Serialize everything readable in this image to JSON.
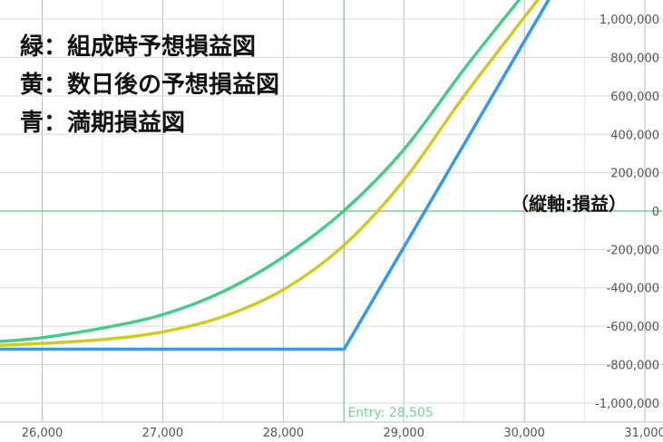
{
  "chart_data": {
    "type": "line",
    "xlim": [
      25650,
      31150
    ],
    "ylim": [
      -1100000,
      1100000
    ],
    "x_ticks": [
      26000,
      27000,
      28000,
      29000,
      30000,
      31000
    ],
    "x_tick_labels": [
      "26,000",
      "27,000",
      "28,000",
      "29,000",
      "30,000",
      "31,000"
    ],
    "y_ticks": [
      1000000,
      800000,
      600000,
      400000,
      200000,
      0,
      -200000,
      -400000,
      -600000,
      -800000,
      -1000000
    ],
    "y_tick_labels": [
      "1,000,000",
      "800,000",
      "600,000",
      "400,000",
      "200,000",
      "0",
      "-200,000",
      "-400,000",
      "-600,000",
      "-800,000",
      "-1,000,000"
    ],
    "grid": true,
    "entry": {
      "x": 28505,
      "label": "Entry: 28,505"
    },
    "ylabel": "（縦軸:損益）",
    "legend_text": [
      "緑：組成時予想損益図",
      "黄：数日後の予想損益図",
      "青：満期損益図"
    ],
    "series": [
      {
        "color": "#44cc88",
        "x": [
          25650,
          26000,
          26500,
          27000,
          27500,
          28000,
          28500,
          29000,
          29500,
          29955
        ],
        "values": [
          -680000,
          -660000,
          -610000,
          -540000,
          -420000,
          -240000,
          0,
          320000,
          740000,
          1100000
        ]
      },
      {
        "color": "#cccc22",
        "x": [
          25650,
          26000,
          26500,
          27000,
          27500,
          28000,
          28500,
          29000,
          29500,
          30110
        ],
        "values": [
          -700000,
          -690000,
          -670000,
          -630000,
          -550000,
          -410000,
          -180000,
          160000,
          600000,
          1100000
        ]
      },
      {
        "color": "#3399ee",
        "x": [
          25650,
          28505,
          30200
        ],
        "values": [
          -720000,
          -720000,
          1100000
        ]
      }
    ]
  }
}
